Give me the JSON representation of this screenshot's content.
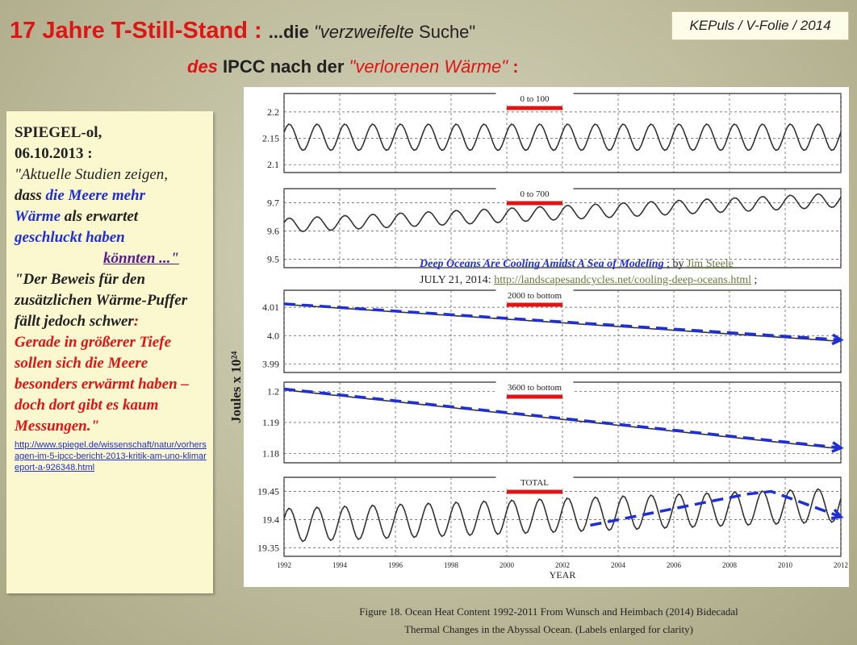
{
  "header": {
    "title_part1": "17 Jahre T-Still-Stand :",
    "title_part2": "...die ",
    "title_part3": "\"verzweifelte",
    "title_part4": " Suche\"",
    "title_line2_a": "des",
    "title_line2_b": " IPCC nach der ",
    "title_line2_c": "\"verlorenen Wärme\"",
    "title_line2_d": "  :",
    "badge": "KEPuls / V-Folie / 2014"
  },
  "quote": {
    "source": "SPIEGEL-ol,",
    "date": "06.10.2013 :",
    "q1": "\"Aktuelle Studien zeigen,",
    "q2a": "dass ",
    "q2b": "die Meere mehr",
    "q3a": "Wärme",
    "q3b": " als erwartet",
    "q4": "geschluckt haben",
    "q5": "könnten ...\"",
    "q6": "\"Der Beweis für den zusätzlichen Wärme-Puffer fällt jedoch schwer",
    "q6b": ":",
    "q7": "Gerade in größerer Tiefe sollen sich die Meere besonders erwärmt haben – doch dort gibt es kaum Messungen.\"",
    "url": "http://www.spiegel.de/wissenschaft/natur/vorhersagen-im-5-ipcc-bericht-2013-kritik-am-uno-klimareport-a-926348.html"
  },
  "overlay": {
    "article_title": "Deep Oceans Are Cooling Amidst A Sea of Modeling",
    "by": " ; by ",
    "author": "Jim Steele",
    "date_prefix": "JULY 21, 2014: ",
    "link": "http://landscapesandcycles.net/cooling-deep-oceans.html",
    "suffix": " ;"
  },
  "ylabel": "Joules  x 10²⁴",
  "caption": {
    "line1": "Figure 18. Ocean Heat Content 1992-2011 From Wunsch and Heimbach (2014) Bidecadal",
    "line2": "Thermal Changes in the Abyssal Ocean.  (Labels enlarged for clarity)"
  },
  "colors": {
    "accent_red": "#e01414",
    "trend_blue": "#1f2fd6",
    "series": "#333333"
  },
  "chart_data": {
    "type": "line",
    "xlabel": "YEAR",
    "xlim": [
      1992,
      2012
    ],
    "x_ticks": [
      "1992",
      "1994",
      "1996",
      "1998",
      "2000",
      "2002",
      "2004",
      "2006",
      "2008",
      "2010",
      "2012"
    ],
    "panels": [
      {
        "label": "0 to 100",
        "yticks": [
          "2.2",
          "2.15",
          "2.1"
        ],
        "yvals": [
          2.2,
          2.15,
          2.1
        ],
        "ylim": [
          2.085,
          2.235
        ],
        "base": 2.152,
        "trend": 0.0,
        "amp": 0.025,
        "trend_line": null
      },
      {
        "label": "0 to 700",
        "yticks": [
          "9.7",
          "9.6",
          "9.5"
        ],
        "yvals": [
          9.7,
          9.6,
          9.5
        ],
        "ylim": [
          9.47,
          9.75
        ],
        "base": 9.62,
        "trend": 0.0045,
        "amp": 0.025,
        "trend_line": null
      },
      {
        "label": "2000 to bottom",
        "yticks": [
          "4.01",
          "4.0",
          "3.99"
        ],
        "yvals": [
          4.01,
          4.0,
          3.99
        ],
        "ylim": [
          3.987,
          4.016
        ],
        "base": 4.011,
        "trend": -0.00065,
        "amp": 0.0,
        "trend_line": {
          "x": [
            1992,
            2012
          ],
          "y": [
            4.0112,
            3.9985
          ]
        }
      },
      {
        "label": "3600 to bottom",
        "yticks": [
          "1.2",
          "1.19",
          "1.18"
        ],
        "yvals": [
          1.2,
          1.19,
          1.18
        ],
        "ylim": [
          1.177,
          1.203
        ],
        "base": 1.2005,
        "trend": -0.00095,
        "amp": 0.0,
        "trend_line": {
          "x": [
            1992,
            2012
          ],
          "y": [
            1.2008,
            1.1818
          ]
        }
      },
      {
        "label": "TOTAL",
        "yticks": [
          "19.45",
          "19.4",
          "19.35"
        ],
        "yvals": [
          19.45,
          19.4,
          19.35
        ],
        "ylim": [
          19.335,
          19.475
        ],
        "base": 19.39,
        "trend": 0.0018,
        "amp": 0.03,
        "trend_line": {
          "x": [
            2003,
            2008.6,
            2009.5,
            2012
          ],
          "y": [
            19.39,
            19.445,
            19.45,
            19.405
          ]
        }
      }
    ]
  }
}
